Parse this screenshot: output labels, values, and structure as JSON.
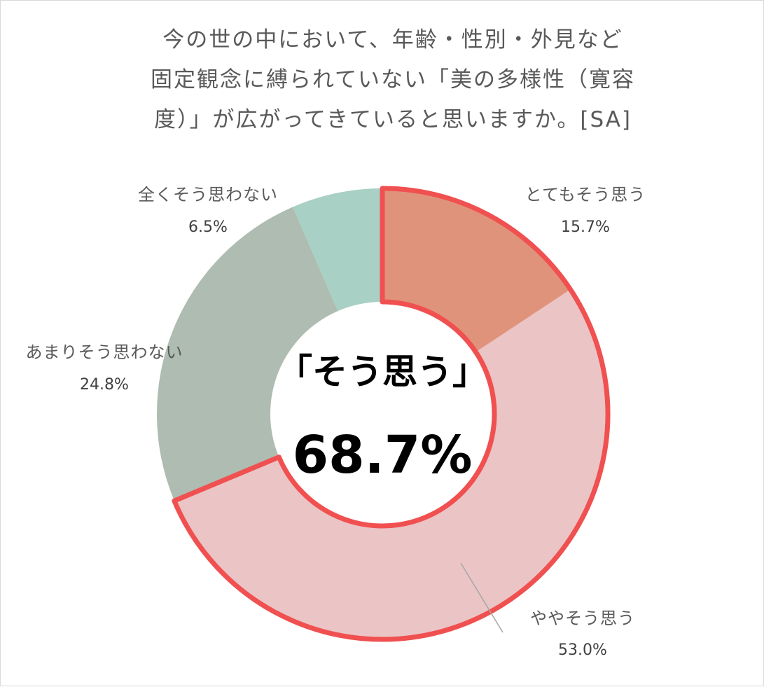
{
  "chart_data": {
    "type": "pie",
    "variant": "donut",
    "title_lines": [
      "今の世の中において、年齢・性別・外見など",
      "固定観念に縛られていない「美の多様性（寛容",
      "度）」が広がってきていると思いますか。[SA]"
    ],
    "slices": [
      {
        "label": "とてもそう思う",
        "value": 15.7,
        "value_label": "15.7%",
        "color": "#e0937b"
      },
      {
        "label": "ややそう思う",
        "value": 53.0,
        "value_label": "53.0%",
        "color": "#ebc4c6"
      },
      {
        "label": "あまりそう思わない",
        "value": 24.8,
        "value_label": "24.8%",
        "color": "#aebcb1"
      },
      {
        "label": "全くそう思わない",
        "value": 6.5,
        "value_label": "6.5%",
        "color": "#a8d0c4"
      }
    ],
    "highlight": {
      "slices": [
        "とてもそう思う",
        "ややそう思う"
      ],
      "outline_color": "#f05050"
    },
    "center_label": "「そう思う」",
    "center_value": "68.7%"
  }
}
